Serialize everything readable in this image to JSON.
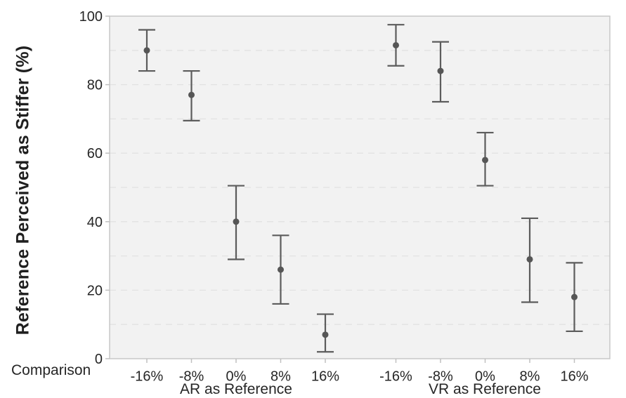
{
  "chart_data": {
    "type": "scatter",
    "title": "",
    "ylabel": "Reference Perceived as Stiffer (%)",
    "xlabel": "Comparison",
    "ylim": [
      0,
      100
    ],
    "yticks": [
      0,
      20,
      40,
      60,
      80,
      100
    ],
    "gridline_values": [
      10,
      20,
      30,
      40,
      50,
      60,
      70,
      80,
      90
    ],
    "grid": "horizontal-dashed",
    "legend": "none",
    "categories": [
      "-16%",
      "-8%",
      "0%",
      "8%",
      "16%"
    ],
    "series": [
      {
        "name": "AR as Reference",
        "means": [
          90,
          77,
          40,
          26,
          7
        ],
        "ci_low": [
          84,
          69.5,
          29,
          16,
          2
        ],
        "ci_high": [
          96,
          84,
          50.5,
          36,
          13
        ]
      },
      {
        "name": "VR as Reference",
        "means": [
          91.5,
          84,
          58,
          29,
          18
        ],
        "ci_low": [
          85.5,
          75,
          50.5,
          16.5,
          8
        ],
        "ci_high": [
          97.5,
          92.5,
          66,
          41,
          28
        ]
      }
    ],
    "colors": {
      "plot_bg": "#f2f2f2",
      "border": "#c7c7c7",
      "grid": "#e2e2e2",
      "tick": "#c0c0c0",
      "data": "#565656",
      "errorbar": "#5c5c5c",
      "text": "#262626",
      "page_bg": "#ffffff"
    }
  }
}
